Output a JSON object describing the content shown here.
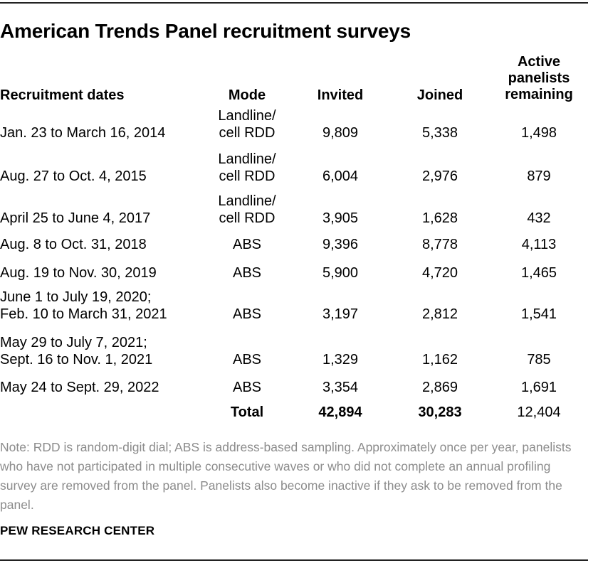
{
  "title": "American Trends Panel recruitment surveys",
  "columns": {
    "dates": "Recruitment dates",
    "mode": "Mode",
    "invited": "Invited",
    "joined": "Joined",
    "active_line1": "Active",
    "active_line2": "panelists",
    "active_line3": "remaining"
  },
  "rows": [
    {
      "dates_line1": "",
      "dates_line2": "Jan. 23 to March 16, 2014",
      "mode_line1": "Landline/",
      "mode_line2": "cell RDD",
      "invited": "9,809",
      "joined": "5,338",
      "active": "1,498"
    },
    {
      "dates_line1": "",
      "dates_line2": "Aug. 27 to Oct. 4, 2015",
      "mode_line1": "Landline/",
      "mode_line2": "cell RDD",
      "invited": "6,004",
      "joined": "2,976",
      "active": "879"
    },
    {
      "dates_line1": "",
      "dates_line2": "April 25 to June 4, 2017",
      "mode_line1": "Landline/",
      "mode_line2": "cell RDD",
      "invited": "3,905",
      "joined": "1,628",
      "active": "432"
    },
    {
      "dates_line1": "",
      "dates_line2": "Aug. 8 to Oct. 31, 2018",
      "mode_line1": "",
      "mode_line2": "ABS",
      "invited": "9,396",
      "joined": "8,778",
      "active": "4,113"
    },
    {
      "dates_line1": "",
      "dates_line2": "Aug. 19 to Nov. 30, 2019",
      "mode_line1": "",
      "mode_line2": "ABS",
      "invited": "5,900",
      "joined": "4,720",
      "active": "1,465"
    },
    {
      "dates_line1": "June 1 to July 19, 2020;",
      "dates_line2": "Feb. 10 to March 31, 2021",
      "mode_line1": "",
      "mode_line2": "ABS",
      "invited": "3,197",
      "joined": "2,812",
      "active": "1,541"
    },
    {
      "dates_line1": "May 29 to July 7, 2021;",
      "dates_line2": "Sept. 16 to Nov. 1, 2021",
      "mode_line1": "",
      "mode_line2": "ABS",
      "invited": "1,329",
      "joined": "1,162",
      "active": "785"
    },
    {
      "dates_line1": "",
      "dates_line2": "May 24 to Sept. 29, 2022",
      "mode_line1": "",
      "mode_line2": "ABS",
      "invited": "3,354",
      "joined": "2,869",
      "active": "1,691"
    }
  ],
  "total": {
    "label": "Total",
    "invited": "42,894",
    "joined": "30,283",
    "active": "12,404"
  },
  "note": "Note: RDD is random-digit dial; ABS is address-based sampling. Approximately once per year, panelists who have not participated in multiple consecutive waves or who did not complete an annual profiling survey are removed from the panel. Panelists also become inactive if they ask to be removed from the panel.",
  "source": "PEW RESEARCH CENTER"
}
